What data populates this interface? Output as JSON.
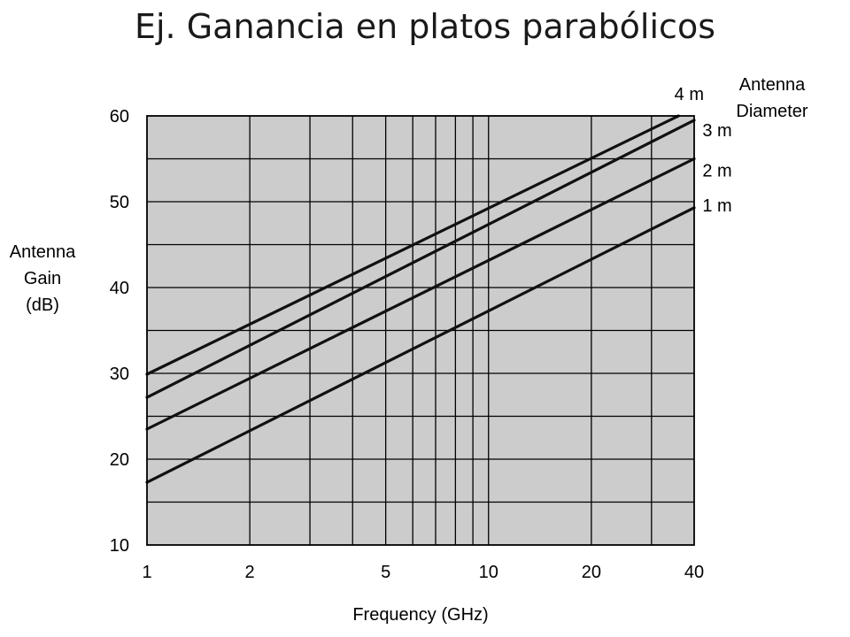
{
  "slide": {
    "title": "Ej. Ganancia en platos parabólicos"
  },
  "chart_data": {
    "type": "line",
    "xscale": "log",
    "xlabel": "Frequency (GHz)",
    "ylabel_lines": [
      "Antenna",
      "Gain",
      "(dB)"
    ],
    "legend_title_lines": [
      "Antenna",
      "Diameter"
    ],
    "xlim": [
      1,
      40
    ],
    "ylim": [
      10,
      60
    ],
    "xticks": [
      1,
      2,
      5,
      10,
      20,
      40
    ],
    "xtick_labels": [
      "1",
      "2",
      "5",
      "10",
      "20",
      "40"
    ],
    "x_gridlines": [
      2,
      3,
      4,
      5,
      6,
      7,
      8,
      9,
      10,
      20,
      30
    ],
    "yticks": [
      10,
      20,
      30,
      40,
      50,
      60
    ],
    "ytick_labels": [
      "10",
      "20",
      "30",
      "40",
      "50",
      "60"
    ],
    "y_gridlines": [
      15,
      20,
      25,
      30,
      35,
      40,
      45,
      50,
      55
    ],
    "plot_background": "#cccccc",
    "line_color": "#111111",
    "series": [
      {
        "name": "1 m",
        "x": [
          1,
          40
        ],
        "y": [
          17.3,
          49.3
        ]
      },
      {
        "name": "2 m",
        "x": [
          1,
          40
        ],
        "y": [
          23.5,
          55.0
        ]
      },
      {
        "name": "3 m",
        "x": [
          1,
          40
        ],
        "y": [
          27.2,
          59.5
        ]
      },
      {
        "name": "4 m",
        "x": [
          1,
          36
        ],
        "y": [
          29.9,
          60.0
        ]
      }
    ]
  }
}
